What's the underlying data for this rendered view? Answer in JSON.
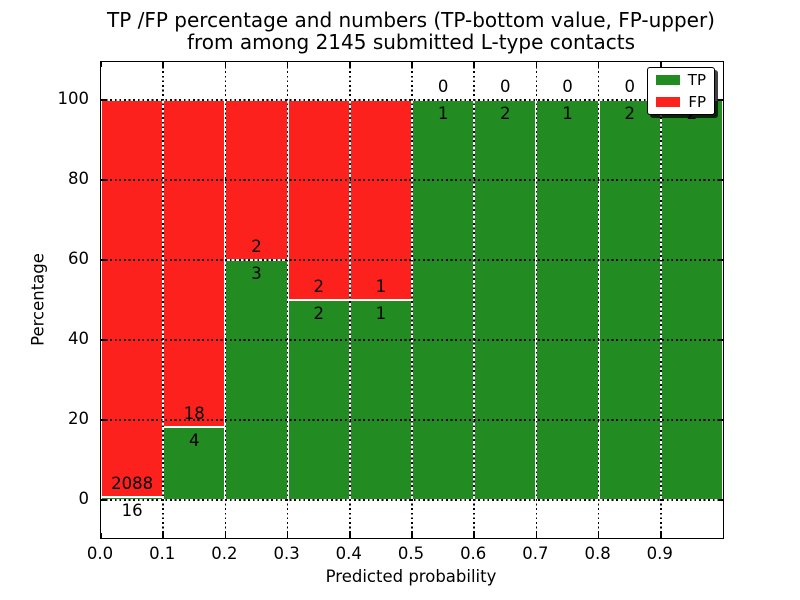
{
  "figure": {
    "title_line1": "TP /FP percentage and numbers (TP-bottom value, FP-upper)",
    "title_line2": "from among 2145 submitted L-type contacts"
  },
  "chart_data": {
    "type": "bar",
    "stacked": true,
    "title": "TP /FP percentage and numbers (TP-bottom value, FP-upper) from among 2145 submitted L-type contacts",
    "xlabel": "Predicted probability",
    "ylabel": "Percentage",
    "total_contacts": 2145,
    "xlim": [
      0.0,
      1.0
    ],
    "ylim": [
      -9.5,
      109.5
    ],
    "xticks": [
      0.0,
      0.1,
      0.2,
      0.3,
      0.4,
      0.5,
      0.6,
      0.7,
      0.8,
      0.9
    ],
    "yticks": [
      0,
      20,
      40,
      60,
      80,
      100
    ],
    "grid": "dotted-black",
    "bar_edge_color": "#ffffff",
    "bins": [
      {
        "range": [
          0.0,
          0.1
        ],
        "tp": 16,
        "fp": 2088,
        "tp_pct": 0.76
      },
      {
        "range": [
          0.1,
          0.2
        ],
        "tp": 4,
        "fp": 18,
        "tp_pct": 18.18
      },
      {
        "range": [
          0.2,
          0.3
        ],
        "tp": 3,
        "fp": 2,
        "tp_pct": 60
      },
      {
        "range": [
          0.3,
          0.4
        ],
        "tp": 2,
        "fp": 2,
        "tp_pct": 50
      },
      {
        "range": [
          0.4,
          0.5
        ],
        "tp": 1,
        "fp": 1,
        "tp_pct": 50
      },
      {
        "range": [
          0.5,
          0.6
        ],
        "tp": 1,
        "fp": 0,
        "tp_pct": 100
      },
      {
        "range": [
          0.6,
          0.7
        ],
        "tp": 2,
        "fp": 0,
        "tp_pct": 100
      },
      {
        "range": [
          0.7,
          0.8
        ],
        "tp": 1,
        "fp": 0,
        "tp_pct": 100
      },
      {
        "range": [
          0.8,
          0.9
        ],
        "tp": 2,
        "fp": 0,
        "tp_pct": 100
      },
      {
        "range": [
          0.9,
          1.0
        ],
        "tp": 2,
        "fp": 0,
        "tp_pct": 100
      }
    ],
    "series": [
      {
        "name": "TP",
        "color": "#228b22"
      },
      {
        "name": "FP",
        "color": "#fc211d"
      }
    ],
    "legend": {
      "location": "upper right",
      "entries": [
        {
          "label": "TP",
          "color": "#228b22"
        },
        {
          "label": "FP",
          "color": "#fc211d"
        }
      ]
    }
  }
}
